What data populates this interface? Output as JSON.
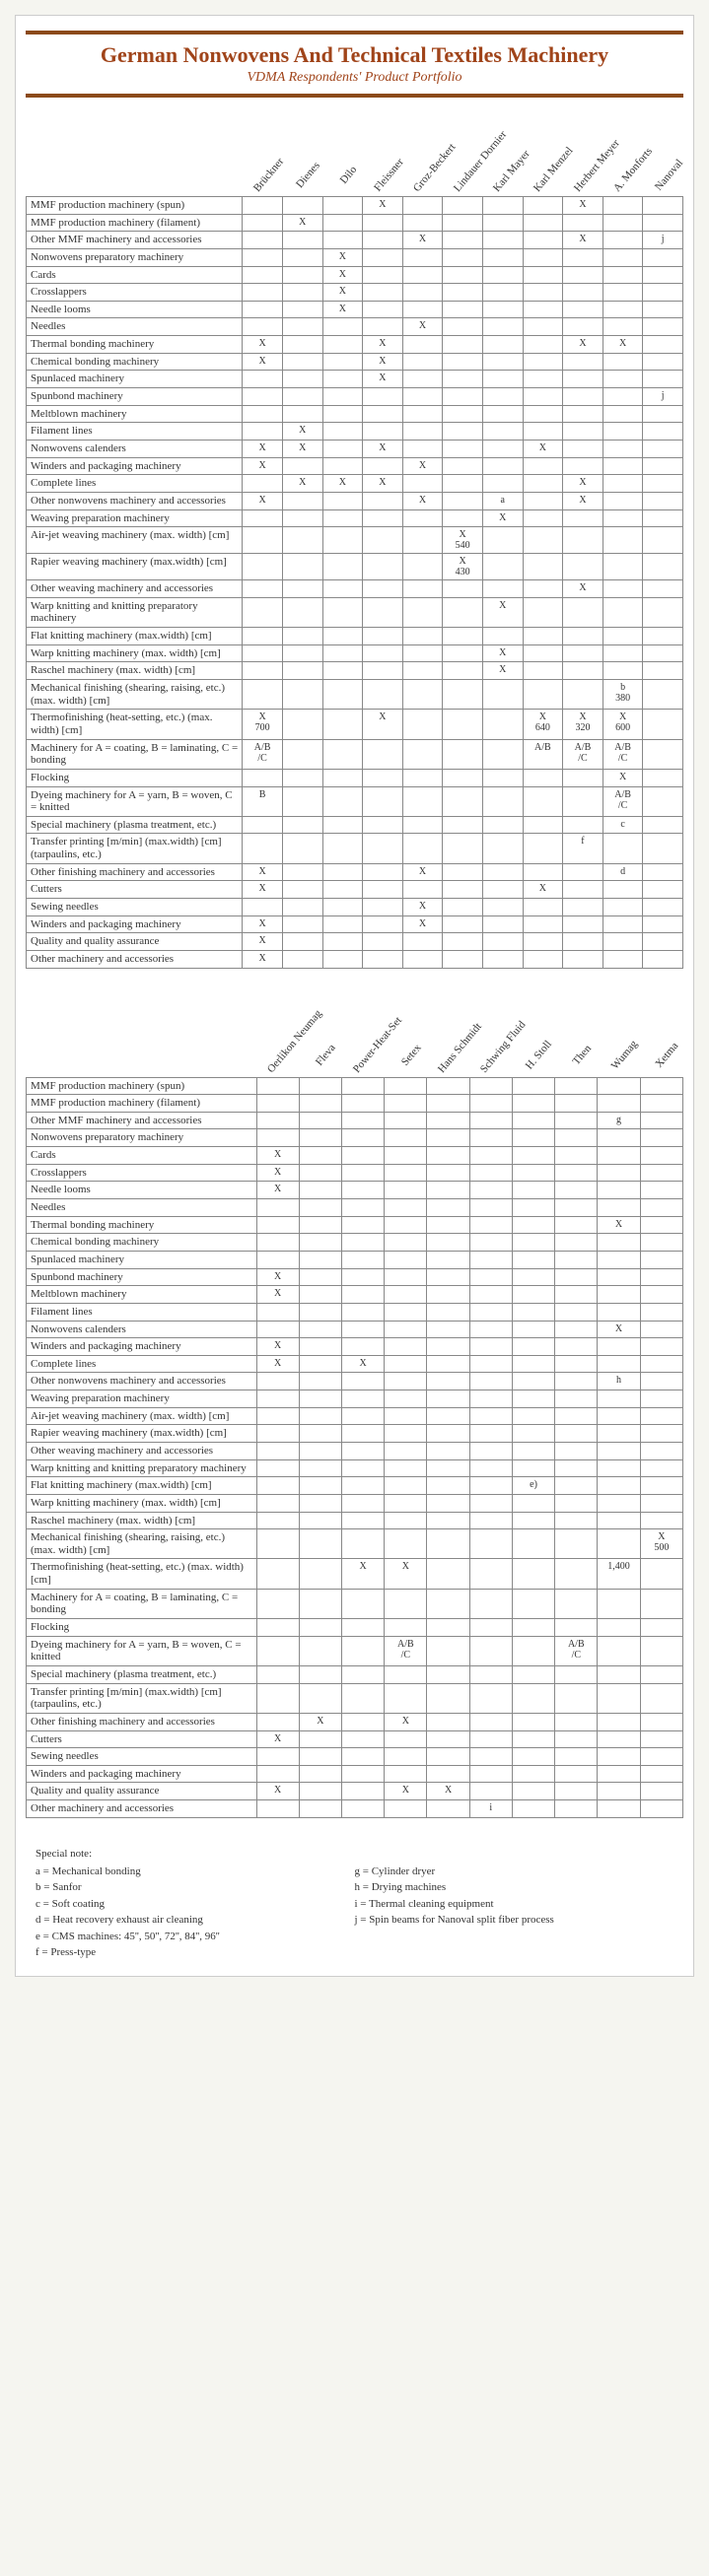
{
  "title": "German Nonwovens And Technical Textiles Machinery",
  "subtitle": "VDMA Respondents' Product Portfolio",
  "rowLabels": [
    "MMF production machinery (spun)",
    "MMF production machinery (filament)",
    "Other MMF machinery and accessories",
    "Nonwovens preparatory machinery",
    "Cards",
    "Crosslappers",
    "Needle looms",
    "Needles",
    "Thermal bonding machinery",
    "Chemical bonding machinery",
    "Spunlaced machinery",
    "Spunbond machinery",
    "Meltblown machinery",
    "Filament lines",
    "Nonwovens calenders",
    "Winders and packaging machinery",
    "Complete lines",
    "Other nonwovens machinery and accessories",
    "Weaving preparation machinery",
    "Air-jet weaving machinery (max. width) [cm]",
    "Rapier weaving machinery (max.width) [cm]",
    "Other weaving machinery and accessories",
    "Warp knitting and knitting preparatory machinery",
    "Flat knitting machinery (max.width) [cm]",
    "Warp knitting machinery (max. width) [cm]",
    "Raschel machinery (max. width) [cm]",
    "Mechanical finishing (shearing, raising, etc.) (max. width) [cm]",
    "Thermofinishing (heat-setting, etc.) (max. width) [cm]",
    "Machinery for A = coating, B = laminating, C = bonding",
    "Flocking",
    "Dyeing machinery for A = yarn, B = woven, C = knitted",
    "Special machinery (plasma treatment, etc.)",
    "Transfer printing [m/min] (max.width) [cm] (tarpaulins, etc.)",
    "Other finishing machinery and accessories",
    "Cutters",
    "Sewing needles",
    "Winders and packaging machinery",
    "Quality and quality assurance",
    "Other machinery and accessories"
  ],
  "tables": [
    {
      "columns": [
        "Brückner",
        "Dienes",
        "Dilo",
        "Fleissner",
        "Groz-Beckert",
        "Lindauer Dornier",
        "Karl Mayer",
        "Karl Menzel",
        "Herbert Meyer",
        "A. Monforts",
        "Nanoval"
      ],
      "cells": {
        "0": {
          "3": "X",
          "8": "X"
        },
        "1": {
          "1": "X"
        },
        "2": {
          "4": "X",
          "8": "X",
          "10": "j"
        },
        "3": {
          "2": "X"
        },
        "4": {
          "2": "X"
        },
        "5": {
          "2": "X"
        },
        "6": {
          "2": "X"
        },
        "7": {
          "4": "X"
        },
        "8": {
          "0": "X",
          "3": "X",
          "8": "X",
          "9": "X"
        },
        "9": {
          "0": "X",
          "3": "X"
        },
        "10": {
          "3": "X"
        },
        "11": {
          "10": "j"
        },
        "13": {
          "1": "X"
        },
        "14": {
          "0": "X",
          "1": "X",
          "3": "X",
          "7": "X"
        },
        "15": {
          "0": "X",
          "4": "X"
        },
        "16": {
          "1": "X",
          "2": "X",
          "3": "X",
          "8": "X"
        },
        "17": {
          "0": "X",
          "4": "X",
          "6": "a",
          "8": "X"
        },
        "18": {
          "6": "X"
        },
        "19": {
          "5": "X 540"
        },
        "20": {
          "5": "X 430"
        },
        "21": {
          "8": "X"
        },
        "22": {
          "6": "X"
        },
        "24": {
          "6": "X"
        },
        "25": {
          "6": "X"
        },
        "26": {
          "9": "b 380"
        },
        "27": {
          "0": "X 700",
          "3": "X",
          "7": "X 640",
          "8": "X 320",
          "9": "X 600"
        },
        "28": {
          "0": "A/B /C",
          "7": "A/B",
          "8": "A/B /C",
          "9": "A/B /C"
        },
        "29": {
          "9": "X"
        },
        "30": {
          "0": "B",
          "9": "A/B /C"
        },
        "31": {
          "9": "c"
        },
        "32": {
          "8": "f"
        },
        "33": {
          "0": "X",
          "4": "X",
          "9": "d"
        },
        "34": {
          "0": "X",
          "7": "X"
        },
        "35": {
          "4": "X"
        },
        "36": {
          "0": "X",
          "4": "X"
        },
        "37": {
          "0": "X"
        },
        "38": {
          "0": "X"
        }
      }
    },
    {
      "columns": [
        "Oerlikon Neumag",
        "Fleva",
        "Power-Heat-Set",
        "Setex",
        "Hans Schmidt",
        "Schwing Fluid",
        "H. Stoll",
        "Then",
        "Wumag",
        "Xetma"
      ],
      "cells": {
        "2": {
          "8": "g"
        },
        "4": {
          "0": "X"
        },
        "5": {
          "0": "X"
        },
        "6": {
          "0": "X"
        },
        "8": {
          "8": "X"
        },
        "11": {
          "0": "X"
        },
        "12": {
          "0": "X"
        },
        "14": {
          "8": "X"
        },
        "15": {
          "0": "X"
        },
        "16": {
          "0": "X",
          "2": "X"
        },
        "17": {
          "8": "h"
        },
        "23": {
          "6": "e)"
        },
        "26": {
          "9": "X 500"
        },
        "27": {
          "2": "X",
          "3": "X",
          "8": "1,400"
        },
        "30": {
          "3": "A/B /C",
          "7": "A/B /C"
        },
        "33": {
          "1": "X",
          "3": "X"
        },
        "34": {
          "0": "X"
        },
        "37": {
          "0": "X",
          "3": "X",
          "4": "X"
        },
        "38": {
          "5": "i"
        }
      }
    }
  ],
  "notes": {
    "title": "Special note:",
    "left": [
      "a = Mechanical bonding",
      "b = Sanfor",
      "c = Soft coating",
      "d = Heat recovery exhaust air cleaning",
      "e = CMS machines: 45'', 50'', 72'', 84'', 96''",
      "f = Press-type"
    ],
    "right": [
      "g = Cylinder dryer",
      "h = Drying machines",
      "i = Thermal cleaning equipment",
      "j = Spin beams for Nanoval split fiber process"
    ]
  }
}
